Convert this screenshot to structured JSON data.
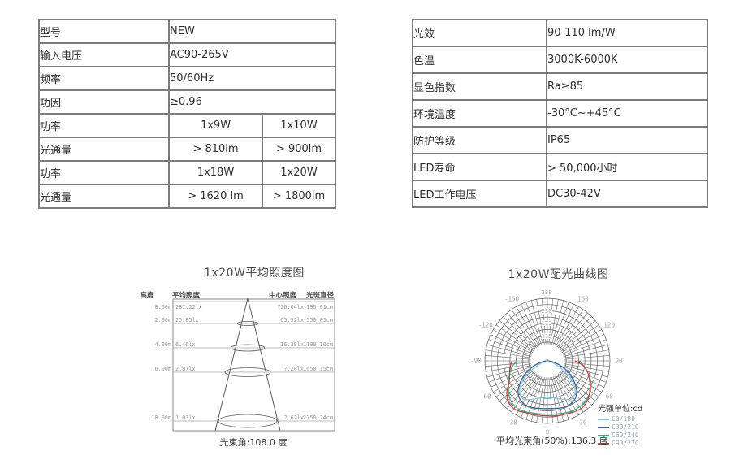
{
  "tables": {
    "electrical": {
      "rows": [
        {
          "label": "型号",
          "values": [
            "NEW"
          ]
        },
        {
          "label": "输入电压",
          "values": [
            "AC90-265V"
          ]
        },
        {
          "label": "频率",
          "values": [
            "50/60Hz"
          ]
        },
        {
          "label": "功因",
          "values": [
            "≥0.96"
          ]
        },
        {
          "label": "功率",
          "values": [
            "1x9W",
            "1x10W"
          ]
        },
        {
          "label": "光通量",
          "values": [
            "> 810lm",
            "> 900lm"
          ]
        },
        {
          "label": "功率",
          "values": [
            "1x18W",
            "1x20W"
          ]
        },
        {
          "label": "光通量",
          "values": [
            "> 1620 lm",
            "> 1800lm"
          ]
        }
      ]
    },
    "optical": {
      "rows": [
        {
          "label": "光效",
          "value": "90-110 lm/W"
        },
        {
          "label": "色温",
          "value": "3000K-6000K"
        },
        {
          "label": "显色指数",
          "value": "Ra≥85"
        },
        {
          "label": "环境温度",
          "value": "-30°C~+45°C"
        },
        {
          "label": "防护等级",
          "value": "IP65"
        },
        {
          "label": "LED寿命",
          "value": "> 50,000小时"
        },
        {
          "label": "LED工作电压",
          "value": "DC30-42V"
        }
      ]
    }
  },
  "chart_data": [
    {
      "type": "table",
      "title": "1x20W平均照度图",
      "columns": [
        "高度",
        "平均照度",
        "中心照度",
        "光斑直径"
      ],
      "rows": [
        [
          "0.60m",
          "287.22lx",
          "726.04lx",
          "105.01cm"
        ],
        [
          "2.00m",
          "25.85lx",
          "65.52lx",
          "550.05cm"
        ],
        [
          "4.00m",
          "6.46lx",
          "16.38lx",
          "1100.10cm"
        ],
        [
          "6.00m",
          "2.87lx",
          "7.28lx",
          "1650.15cm"
        ],
        [
          "10.00m",
          "1.03lx",
          "2.62lx",
          "2750.24cm"
        ]
      ],
      "caption": "光束角:108.0 度",
      "beam_angle_deg": 108.0
    },
    {
      "type": "line",
      "polar": true,
      "title": "1x20W配光曲线图",
      "unit_label": "光强单位:cd",
      "caption": "平均光束角(50%):136.3 度",
      "avg_beam_angle_50_deg": 136.3,
      "rmax": 288,
      "radial_ticks": [
        288,
        230,
        173,
        115
      ],
      "angle_labels": [
        -150,
        -120,
        -90,
        -60,
        -30,
        0,
        30,
        60,
        90,
        120,
        150
      ],
      "grid_color": "#5f5f5f",
      "tick_color": "#9fa4a6",
      "series": [
        {
          "name": "C0/180",
          "color": "#7ecbdf",
          "points": [
            [
              -90,
              4
            ],
            [
              -80,
              12
            ],
            [
              -70,
              35
            ],
            [
              -60,
              90
            ],
            [
              -52,
              148
            ],
            [
              -45,
              183
            ],
            [
              -38,
              203
            ],
            [
              -32,
              210
            ],
            [
              -25,
              198
            ],
            [
              -18,
              185
            ],
            [
              -10,
              172
            ],
            [
              0,
              166
            ],
            [
              10,
              172
            ],
            [
              18,
              185
            ],
            [
              25,
              198
            ],
            [
              32,
              210
            ],
            [
              38,
              203
            ],
            [
              45,
              183
            ],
            [
              52,
              148
            ],
            [
              60,
              90
            ],
            [
              70,
              35
            ],
            [
              80,
              12
            ],
            [
              90,
              4
            ]
          ]
        },
        {
          "name": "C30/210",
          "color": "#3f64a4",
          "points": [
            [
              -90,
              8
            ],
            [
              -80,
              30
            ],
            [
              -70,
              72
            ],
            [
              -60,
              122
            ],
            [
              -50,
              172
            ],
            [
              -42,
              205
            ],
            [
              -34,
              222
            ],
            [
              -26,
              228
            ],
            [
              -18,
              227
            ],
            [
              -10,
              223
            ],
            [
              0,
              220
            ],
            [
              10,
              223
            ],
            [
              18,
              227
            ],
            [
              26,
              228
            ],
            [
              34,
              222
            ],
            [
              42,
              205
            ],
            [
              50,
              172
            ],
            [
              60,
              122
            ],
            [
              70,
              72
            ],
            [
              80,
              30
            ],
            [
              90,
              8
            ]
          ]
        },
        {
          "name": "C60/240",
          "color": "#2eb277",
          "points": [
            [
              -90,
              142
            ],
            [
              -80,
              168
            ],
            [
              -70,
              188
            ],
            [
              -60,
              205
            ],
            [
              -52,
              228
            ],
            [
              -44,
              250
            ],
            [
              -36,
              258
            ],
            [
              -28,
              260
            ],
            [
              -20,
              253
            ],
            [
              -10,
              248
            ],
            [
              0,
              246
            ],
            [
              10,
              249
            ],
            [
              20,
              255
            ],
            [
              30,
              260
            ],
            [
              40,
              258
            ],
            [
              50,
              250
            ],
            [
              60,
              237
            ],
            [
              70,
              207
            ],
            [
              80,
              176
            ],
            [
              90,
              148
            ]
          ]
        },
        {
          "name": "C90/270",
          "color": "#df3b3c",
          "points": [
            [
              -90,
              163
            ],
            [
              -80,
              177
            ],
            [
              -70,
              186
            ],
            [
              -62,
              196
            ],
            [
              -54,
              232
            ],
            [
              -46,
              258
            ],
            [
              -38,
              270
            ],
            [
              -30,
              268
            ],
            [
              -22,
              258
            ],
            [
              -12,
              255
            ],
            [
              0,
              254
            ],
            [
              10,
              257
            ],
            [
              20,
              261
            ],
            [
              30,
              268
            ],
            [
              38,
              270
            ],
            [
              46,
              260
            ],
            [
              56,
              238
            ],
            [
              66,
              214
            ],
            [
              76,
              190
            ],
            [
              84,
              162
            ],
            [
              90,
              128
            ]
          ]
        }
      ]
    }
  ]
}
